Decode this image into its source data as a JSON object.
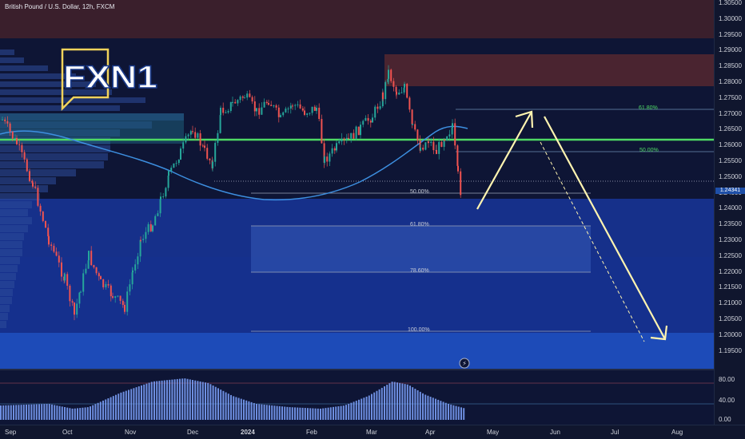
{
  "chart": {
    "title": "British Pound / U.S. Dollar, 12h, FXCM",
    "logo_text": "FXN1",
    "colors": {
      "background": "#0e1535",
      "supply_zone": "#4a2430",
      "demand_zone": "#1d4bb8",
      "support_line": "#4ed964",
      "moving_average": "#3d8fe0",
      "candle_up": "#26a69a",
      "candle_down": "#ef5350",
      "arrow": "#fff4b0",
      "volume_profile": "#2a3ea0",
      "oscillator": "#7fa5ff"
    }
  },
  "price_axis": {
    "ticks": [
      "1.30500",
      "1.30000",
      "1.29500",
      "1.29000",
      "1.28500",
      "1.28000",
      "1.27500",
      "1.27000",
      "1.26500",
      "1.26000",
      "1.25500",
      "1.25000",
      "1.24500",
      "1.24000",
      "1.23500",
      "1.23000",
      "1.22500",
      "1.22000",
      "1.21500",
      "1.21000",
      "1.20500",
      "1.20000",
      "1.19500"
    ],
    "last_price": "1.24341"
  },
  "oscillator_axis": {
    "ticks": [
      "80.00",
      "40.00",
      "0.00"
    ]
  },
  "time_axis": {
    "labels": [
      "Sep",
      "Oct",
      "Nov",
      "Dec",
      "2024",
      "Feb",
      "Mar",
      "Apr",
      "May",
      "Jun",
      "Jul",
      "Aug"
    ]
  },
  "fib_upper": {
    "levels": [
      "61.80%",
      "50.00%"
    ]
  },
  "fib_lower": {
    "levels": [
      "50.00%",
      "61.80%",
      "78.60%",
      "100.00%"
    ]
  },
  "chart_data": {
    "type": "candlestick",
    "symbol": "British Pound / U.S. Dollar",
    "timeframe": "12h",
    "source": "FXCM",
    "y_range": [
      1.19,
      1.31
    ],
    "key_levels": {
      "support_line": 1.2625,
      "dotted_reference": 1.25,
      "supply_zone": [
        1.279,
        1.289
      ],
      "top_zone": [
        1.295,
        1.31
      ],
      "demand_zone": [
        1.19,
        1.2445
      ]
    },
    "projection": {
      "rally_target": 1.272,
      "drop_target": 1.2
    },
    "oscillator_range": [
      0,
      100
    ],
    "oscillator_levels": [
      80,
      40,
      0
    ]
  }
}
